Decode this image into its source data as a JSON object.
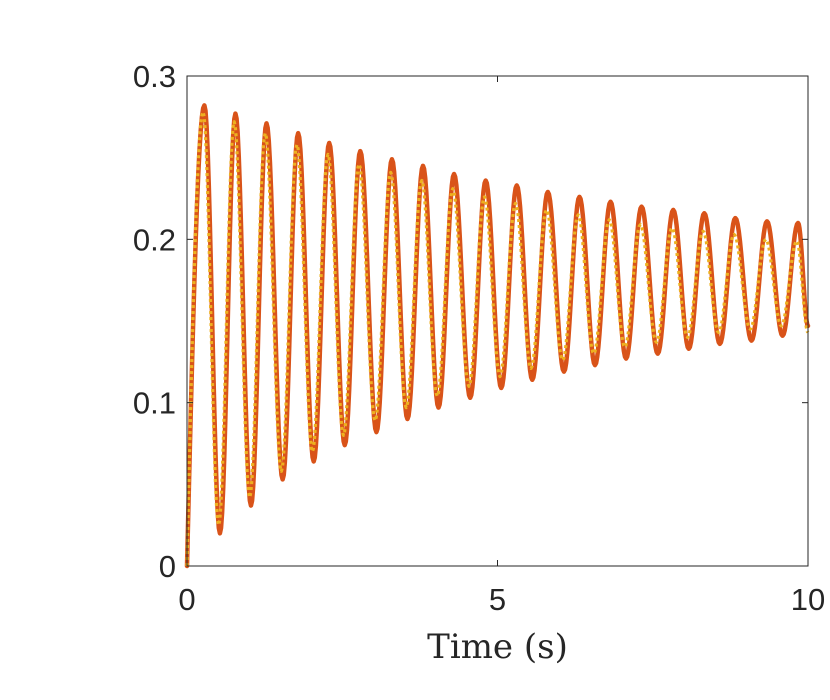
{
  "chart_data": {
    "type": "line",
    "title": "",
    "xlabel": "Time (s)",
    "ylabel": "",
    "xlim": [
      0,
      10
    ],
    "ylim": [
      0,
      0.3
    ],
    "grid": false,
    "xticks": [
      0,
      5,
      10
    ],
    "xtick_labels": [
      "0",
      "5",
      "10"
    ],
    "yticks": [
      0,
      0.1,
      0.2,
      0.3
    ],
    "ytick_labels": [
      "0",
      "0.1",
      "0.2",
      "0.3"
    ],
    "series": [
      {
        "color": "#d95319",
        "style": "solid",
        "peaks": [
          [
            0.28,
            0.282
          ],
          [
            0.78,
            0.277
          ],
          [
            1.28,
            0.271
          ],
          [
            1.79,
            0.265
          ],
          [
            2.29,
            0.259
          ],
          [
            2.79,
            0.254
          ],
          [
            3.3,
            0.249
          ],
          [
            3.8,
            0.245
          ],
          [
            4.3,
            0.24
          ],
          [
            4.81,
            0.236
          ],
          [
            5.31,
            0.233
          ],
          [
            5.81,
            0.229
          ],
          [
            6.32,
            0.226
          ],
          [
            6.82,
            0.223
          ],
          [
            7.32,
            0.22
          ],
          [
            7.83,
            0.218
          ],
          [
            8.33,
            0.216
          ],
          [
            8.83,
            0.213
          ],
          [
            9.34,
            0.211
          ],
          [
            9.84,
            0.21
          ]
        ],
        "troughs": [
          [
            0.53,
            0.02
          ],
          [
            1.03,
            0.037
          ],
          [
            1.54,
            0.053
          ],
          [
            2.04,
            0.064
          ],
          [
            2.54,
            0.074
          ],
          [
            3.05,
            0.082
          ],
          [
            3.55,
            0.09
          ],
          [
            4.05,
            0.097
          ],
          [
            4.56,
            0.103
          ],
          [
            5.06,
            0.109
          ],
          [
            5.56,
            0.114
          ],
          [
            6.07,
            0.119
          ],
          [
            6.57,
            0.123
          ],
          [
            7.07,
            0.127
          ],
          [
            7.58,
            0.13
          ],
          [
            8.08,
            0.133
          ],
          [
            8.58,
            0.136
          ],
          [
            9.09,
            0.138
          ],
          [
            9.59,
            0.141
          ]
        ],
        "end": [
          10.0,
          0.147
        ]
      },
      {
        "color": "#edb120",
        "style": "dotted",
        "peaks": [
          [
            0.26,
            0.278
          ],
          [
            0.76,
            0.272
          ],
          [
            1.26,
            0.265
          ],
          [
            1.77,
            0.258
          ],
          [
            2.27,
            0.252
          ],
          [
            2.77,
            0.246
          ],
          [
            3.28,
            0.241
          ],
          [
            3.78,
            0.236
          ],
          [
            4.28,
            0.231
          ],
          [
            4.79,
            0.226
          ],
          [
            5.29,
            0.222
          ],
          [
            5.79,
            0.218
          ],
          [
            6.3,
            0.215
          ],
          [
            6.8,
            0.212
          ],
          [
            7.3,
            0.209
          ],
          [
            7.81,
            0.207
          ],
          [
            8.31,
            0.205
          ],
          [
            8.81,
            0.203
          ],
          [
            9.32,
            0.2
          ],
          [
            9.82,
            0.199
          ]
        ],
        "troughs": [
          [
            0.51,
            0.025
          ],
          [
            1.01,
            0.042
          ],
          [
            1.52,
            0.058
          ],
          [
            2.02,
            0.07
          ],
          [
            2.52,
            0.08
          ],
          [
            3.03,
            0.089
          ],
          [
            3.53,
            0.097
          ],
          [
            4.03,
            0.104
          ],
          [
            4.54,
            0.11
          ],
          [
            5.04,
            0.116
          ],
          [
            5.54,
            0.121
          ],
          [
            6.05,
            0.126
          ],
          [
            6.55,
            0.13
          ],
          [
            7.05,
            0.134
          ],
          [
            7.56,
            0.137
          ],
          [
            8.06,
            0.14
          ],
          [
            8.56,
            0.143
          ],
          [
            9.07,
            0.145
          ],
          [
            9.57,
            0.147
          ]
        ],
        "end": [
          10.0,
          0.143
        ]
      }
    ]
  }
}
